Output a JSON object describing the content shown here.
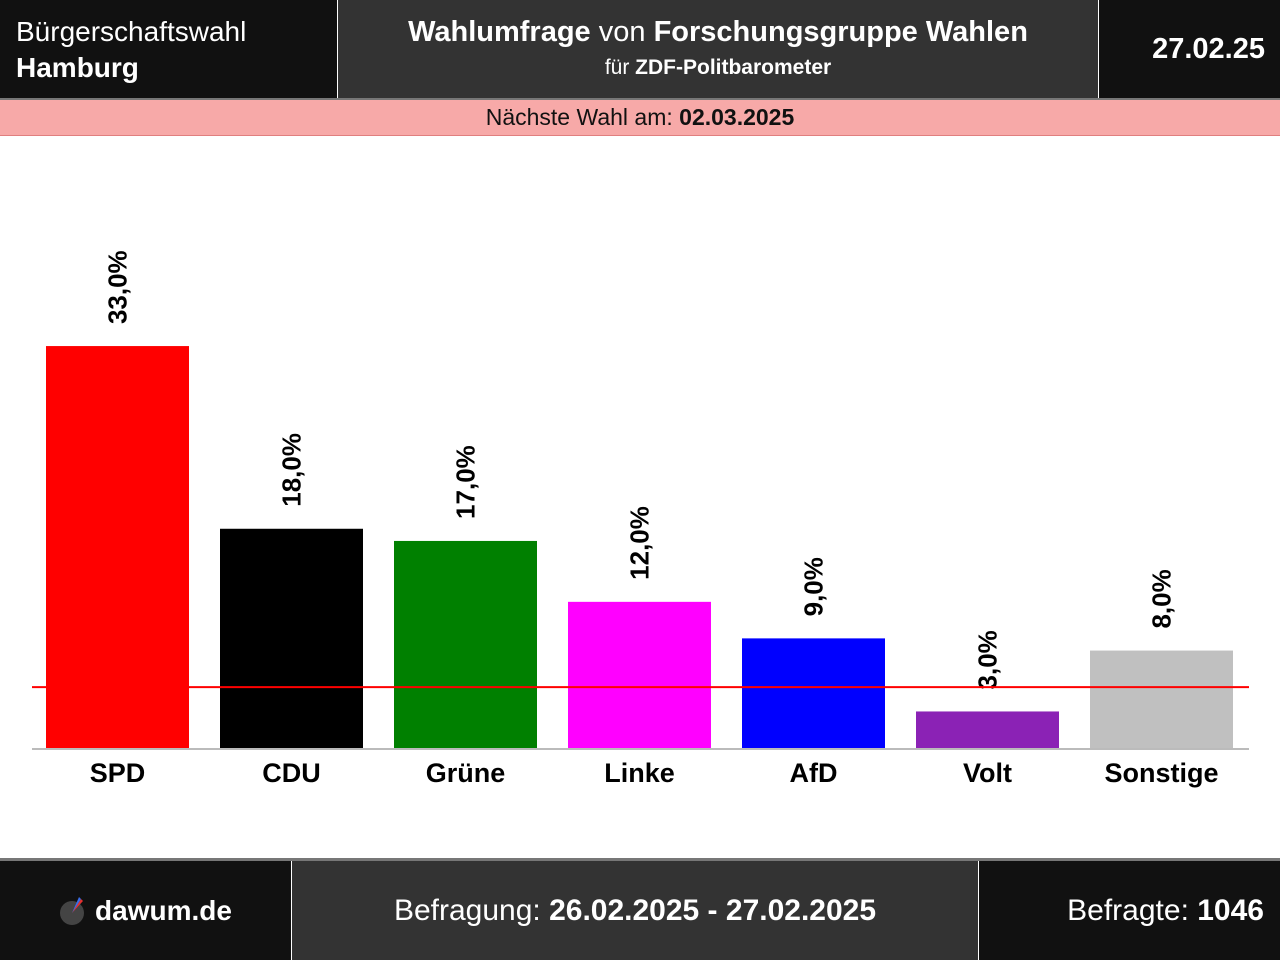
{
  "header": {
    "election_line1": "Bürgerschaftswahl",
    "election_line2": "Hamburg",
    "poll_word": "Wahlumfrage",
    "von": "von",
    "institute": "Forschungsgruppe Wahlen",
    "fuer": "für",
    "client": "ZDF-Politbarometer",
    "date": "27.02.25"
  },
  "next_election": {
    "label": "Nächste Wahl am:",
    "date": "02.03.2025"
  },
  "footer": {
    "logo": "dawum.de",
    "period_label": "Befragung:",
    "period": "26.02.2025 - 27.02.2025",
    "respondents_label": "Befragte:",
    "respondents": "1046"
  },
  "chart_data": {
    "type": "bar",
    "categories": [
      "SPD",
      "CDU",
      "Grüne",
      "Linke",
      "AfD",
      "Volt",
      "Sonstige"
    ],
    "values": [
      33.0,
      18.0,
      17.0,
      12.0,
      9.0,
      3.0,
      8.0
    ],
    "value_labels": [
      "33,0%",
      "18,0%",
      "17,0%",
      "12,0%",
      "9,0%",
      "3,0%",
      "8,0%"
    ],
    "colors": [
      "#ff0000",
      "#000000",
      "#008000",
      "#ff00ff",
      "#0000ff",
      "#8b22b5",
      "#c0c0c0"
    ],
    "threshold": 5,
    "threshold_color": "#ff0000"
  }
}
